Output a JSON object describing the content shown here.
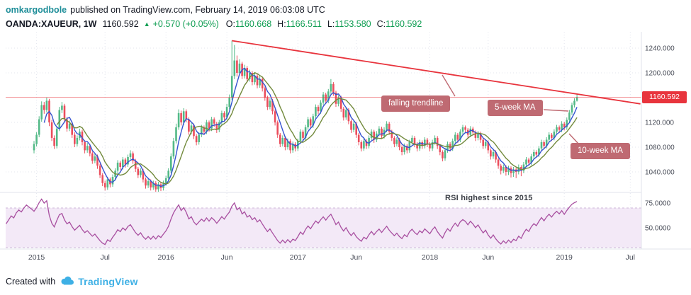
{
  "header": {
    "username": "omkargodbole",
    "published_text": "published on TradingView.com, February 14, 2019 06:03:08 UTC",
    "symbol": "OANDA:XAUEUR, 1W",
    "price": "1160.592",
    "up_arrow": "▲",
    "change": "+0.570 (+0.05%)",
    "ohlc": [
      {
        "label": "O:",
        "value": "1160.668"
      },
      {
        "label": "H:",
        "value": "1166.511"
      },
      {
        "label": "L:",
        "value": "1153.580"
      },
      {
        "label": "C:",
        "value": "1160.592"
      }
    ]
  },
  "annotations": {
    "falling_trendline": "falling trendline",
    "ma_fast": "5-week MA",
    "ma_slow": "10-week MA",
    "rsi_note": "RSI highest since 2015"
  },
  "price_axis_label": "1160.592",
  "footer": {
    "created_with": "Created with",
    "brand": "TradingView"
  },
  "colors": {
    "up": "#53b987",
    "down": "#eb4d5c",
    "ma_fast": "#3553d0",
    "ma_slow": "#728a3c",
    "trend": "#e8343d",
    "rsi": "#a84fa0",
    "rsi_band_fill": "#f3e9f7",
    "rsi_band_edge": "#ccb6d9",
    "label_box": "#bf6a72",
    "grid": "#e3e5ee",
    "axis_text": "#4a4e59",
    "header_green": "#0f9d52",
    "username_teal": "#1e8e99",
    "tv_blue": "#3eb0e5"
  },
  "chart_data": {
    "type": "candlestick",
    "title": "OANDA:XAUEUR, 1W",
    "legend": [
      "5-week MA",
      "10-week MA",
      "RSI"
    ],
    "main_ylim": [
      1007,
      1266
    ],
    "rsi_ylim": [
      28.5,
      85.5
    ],
    "grid": true,
    "price_line": 1160.592,
    "first_open": 1075,
    "y_axis_ticks_main": [
      {
        "label": "1240.000",
        "value": 1240
      },
      {
        "label": "1200.000",
        "value": 1200
      },
      {
        "label": "1120.000",
        "value": 1120
      },
      {
        "label": "1080.000",
        "value": 1080
      },
      {
        "label": "1040.000",
        "value": 1040
      }
    ],
    "y_axis_ticks_rsi": [
      {
        "label": "75.0000",
        "value": 75
      },
      {
        "label": "50.0000",
        "value": 50
      }
    ],
    "x_axis_labels": [
      {
        "label": "2015",
        "week": 1
      },
      {
        "label": "Jul",
        "week": 28
      },
      {
        "label": "2016",
        "week": 52
      },
      {
        "label": "Jun",
        "week": 76
      },
      {
        "label": "2017",
        "week": 104
      },
      {
        "label": "Jun",
        "week": 127
      },
      {
        "label": "2018",
        "week": 156
      },
      {
        "label": "Jun",
        "week": 179
      },
      {
        "label": "2019",
        "week": 209
      },
      {
        "label": "Jul",
        "week": 235
      }
    ],
    "indicators": {
      "ma_fast": 5,
      "ma_slow": 10,
      "rsi_period": 14,
      "rsi_bands": [
        70,
        30
      ]
    },
    "trendline": {
      "from_week": 78,
      "from_price": 1252,
      "to_week": 239,
      "to_price": 1150
    },
    "rsi_seed": {
      "avg_gain": 6,
      "avg_loss": 3
    },
    "rsi_prelude": [
      {
        "week": -11,
        "value": 54
      },
      {
        "week": -10,
        "value": 58
      },
      {
        "week": -9,
        "value": 62
      },
      {
        "week": -8,
        "value": 60
      },
      {
        "week": -7,
        "value": 65
      },
      {
        "week": -6,
        "value": 68
      },
      {
        "week": -5,
        "value": 66
      },
      {
        "week": -4,
        "value": 70
      },
      {
        "week": -3,
        "value": 73
      },
      {
        "week": -2,
        "value": 71
      },
      {
        "week": -1,
        "value": 69
      }
    ],
    "candles": [
      [
        1090,
        1070,
        1085
      ],
      [
        1104,
        1081,
        1100
      ],
      [
        1130,
        1096,
        1125
      ],
      [
        1154,
        1121,
        1148
      ],
      [
        1153,
        1134,
        1140
      ],
      [
        1160,
        1136,
        1155
      ],
      [
        1158,
        1114,
        1120
      ],
      [
        1124,
        1090,
        1095
      ],
      [
        1099,
        1077,
        1082
      ],
      [
        1114,
        1078,
        1110
      ],
      [
        1145,
        1106,
        1140
      ],
      [
        1153,
        1135,
        1147
      ],
      [
        1150,
        1120,
        1125
      ],
      [
        1129,
        1105,
        1110
      ],
      [
        1123,
        1106,
        1118
      ],
      [
        1121,
        1095,
        1100
      ],
      [
        1104,
        1080,
        1085
      ],
      [
        1099,
        1081,
        1095
      ],
      [
        1110,
        1091,
        1105
      ],
      [
        1108,
        1083,
        1088
      ],
      [
        1091,
        1070,
        1075
      ],
      [
        1087,
        1071,
        1082
      ],
      [
        1085,
        1065,
        1070
      ],
      [
        1073,
        1053,
        1058
      ],
      [
        1069,
        1054,
        1065
      ],
      [
        1068,
        1045,
        1050
      ],
      [
        1053,
        1030,
        1035
      ],
      [
        1038,
        1017,
        1022
      ],
      [
        1026,
        1010,
        1015
      ],
      [
        1032,
        1011,
        1028
      ],
      [
        1031,
        1015,
        1020
      ],
      [
        1036,
        1016,
        1032
      ],
      [
        1046,
        1026,
        1042
      ],
      [
        1059,
        1038,
        1055
      ],
      [
        1058,
        1043,
        1048
      ],
      [
        1064,
        1044,
        1060
      ],
      [
        1063,
        1047,
        1052
      ],
      [
        1068,
        1048,
        1064
      ],
      [
        1075,
        1060,
        1070
      ],
      [
        1073,
        1053,
        1058
      ],
      [
        1061,
        1040,
        1045
      ],
      [
        1048,
        1030,
        1035
      ],
      [
        1046,
        1031,
        1042
      ],
      [
        1045,
        1023,
        1028
      ],
      [
        1031,
        1013,
        1018
      ],
      [
        1029,
        1014,
        1025
      ],
      [
        1028,
        1010,
        1015
      ],
      [
        1026,
        1011,
        1022
      ],
      [
        1025,
        1008,
        1012
      ],
      [
        1024,
        1008,
        1020
      ],
      [
        1023,
        1009,
        1014
      ],
      [
        1026,
        1010,
        1022
      ],
      [
        1034,
        1018,
        1030
      ],
      [
        1046,
        1026,
        1042
      ],
      [
        1070,
        1038,
        1065
      ],
      [
        1095,
        1061,
        1090
      ],
      [
        1118,
        1086,
        1112
      ],
      [
        1141,
        1108,
        1135
      ],
      [
        1139,
        1115,
        1120
      ],
      [
        1143,
        1116,
        1138
      ],
      [
        1141,
        1120,
        1125
      ],
      [
        1128,
        1100,
        1105
      ],
      [
        1119,
        1101,
        1115
      ],
      [
        1118,
        1093,
        1098
      ],
      [
        1101,
        1083,
        1088
      ],
      [
        1104,
        1084,
        1100
      ],
      [
        1116,
        1096,
        1112
      ],
      [
        1115,
        1100,
        1105
      ],
      [
        1124,
        1101,
        1120
      ],
      [
        1123,
        1105,
        1110
      ],
      [
        1129,
        1106,
        1125
      ],
      [
        1128,
        1113,
        1118
      ],
      [
        1121,
        1103,
        1108
      ],
      [
        1124,
        1104,
        1120
      ],
      [
        1139,
        1116,
        1135
      ],
      [
        1138,
        1123,
        1128
      ],
      [
        1150,
        1124,
        1145
      ],
      [
        1165,
        1141,
        1160
      ],
      [
        1252,
        1156,
        1195
      ],
      [
        1245,
        1190,
        1220
      ],
      [
        1228,
        1194,
        1200
      ],
      [
        1222,
        1196,
        1215
      ],
      [
        1218,
        1190,
        1195
      ],
      [
        1213,
        1191,
        1208
      ],
      [
        1211,
        1185,
        1190
      ],
      [
        1205,
        1186,
        1200
      ],
      [
        1203,
        1180,
        1185
      ],
      [
        1200,
        1181,
        1195
      ],
      [
        1198,
        1175,
        1180
      ],
      [
        1195,
        1176,
        1190
      ],
      [
        1193,
        1170,
        1175
      ],
      [
        1178,
        1155,
        1160
      ],
      [
        1163,
        1140,
        1145
      ],
      [
        1159,
        1141,
        1155
      ],
      [
        1158,
        1133,
        1138
      ],
      [
        1141,
        1115,
        1120
      ],
      [
        1123,
        1095,
        1100
      ],
      [
        1103,
        1080,
        1085
      ],
      [
        1099,
        1081,
        1095
      ],
      [
        1098,
        1075,
        1080
      ],
      [
        1094,
        1076,
        1090
      ],
      [
        1093,
        1070,
        1075
      ],
      [
        1089,
        1071,
        1085
      ],
      [
        1088,
        1073,
        1078
      ],
      [
        1094,
        1074,
        1090
      ],
      [
        1109,
        1086,
        1105
      ],
      [
        1108,
        1090,
        1095
      ],
      [
        1116,
        1091,
        1112
      ],
      [
        1129,
        1108,
        1125
      ],
      [
        1128,
        1110,
        1115
      ],
      [
        1134,
        1111,
        1130
      ],
      [
        1149,
        1126,
        1145
      ],
      [
        1148,
        1133,
        1138
      ],
      [
        1156,
        1134,
        1152
      ],
      [
        1169,
        1148,
        1165
      ],
      [
        1168,
        1150,
        1155
      ],
      [
        1174,
        1151,
        1170
      ],
      [
        1190,
        1166,
        1182
      ],
      [
        1185,
        1163,
        1168
      ],
      [
        1171,
        1145,
        1150
      ],
      [
        1164,
        1146,
        1160
      ],
      [
        1163,
        1137,
        1142
      ],
      [
        1145,
        1123,
        1128
      ],
      [
        1144,
        1124,
        1140
      ],
      [
        1143,
        1117,
        1122
      ],
      [
        1125,
        1103,
        1108
      ],
      [
        1122,
        1104,
        1118
      ],
      [
        1121,
        1095,
        1100
      ],
      [
        1103,
        1083,
        1088
      ],
      [
        1091,
        1073,
        1078
      ],
      [
        1094,
        1074,
        1090
      ],
      [
        1093,
        1077,
        1082
      ],
      [
        1099,
        1078,
        1095
      ],
      [
        1109,
        1091,
        1105
      ],
      [
        1108,
        1087,
        1092
      ],
      [
        1106,
        1088,
        1102
      ],
      [
        1114,
        1098,
        1110
      ],
      [
        1113,
        1093,
        1098
      ],
      [
        1112,
        1094,
        1108
      ],
      [
        1122,
        1104,
        1118
      ],
      [
        1121,
        1100,
        1105
      ],
      [
        1108,
        1090,
        1095
      ],
      [
        1098,
        1080,
        1085
      ],
      [
        1096,
        1081,
        1092
      ],
      [
        1095,
        1075,
        1080
      ],
      [
        1083,
        1067,
        1072
      ],
      [
        1086,
        1068,
        1082
      ],
      [
        1085,
        1070,
        1075
      ],
      [
        1092,
        1071,
        1088
      ],
      [
        1099,
        1084,
        1095
      ],
      [
        1098,
        1080,
        1085
      ],
      [
        1088,
        1073,
        1078
      ],
      [
        1092,
        1074,
        1088
      ],
      [
        1091,
        1077,
        1082
      ],
      [
        1096,
        1078,
        1092
      ],
      [
        1095,
        1080,
        1085
      ],
      [
        1088,
        1073,
        1078
      ],
      [
        1092,
        1074,
        1088
      ],
      [
        1099,
        1084,
        1095
      ],
      [
        1098,
        1077,
        1082
      ],
      [
        1085,
        1067,
        1072
      ],
      [
        1075,
        1057,
        1062
      ],
      [
        1079,
        1058,
        1075
      ],
      [
        1089,
        1071,
        1085
      ],
      [
        1088,
        1073,
        1078
      ],
      [
        1094,
        1074,
        1090
      ],
      [
        1104,
        1086,
        1100
      ],
      [
        1103,
        1087,
        1092
      ],
      [
        1109,
        1088,
        1105
      ],
      [
        1116,
        1101,
        1112
      ],
      [
        1115,
        1103,
        1108
      ],
      [
        1111,
        1095,
        1100
      ],
      [
        1114,
        1096,
        1110
      ],
      [
        1113,
        1099,
        1104
      ],
      [
        1107,
        1090,
        1095
      ],
      [
        1106,
        1091,
        1102
      ],
      [
        1105,
        1087,
        1092
      ],
      [
        1095,
        1077,
        1082
      ],
      [
        1092,
        1078,
        1088
      ],
      [
        1091,
        1070,
        1075
      ],
      [
        1078,
        1060,
        1065
      ],
      [
        1076,
        1061,
        1072
      ],
      [
        1075,
        1055,
        1060
      ],
      [
        1063,
        1045,
        1050
      ],
      [
        1053,
        1036,
        1042
      ],
      [
        1052,
        1038,
        1048
      ],
      [
        1051,
        1034,
        1040
      ],
      [
        1050,
        1035,
        1046
      ],
      [
        1049,
        1031,
        1038
      ],
      [
        1048,
        1032,
        1044
      ],
      [
        1047,
        1030,
        1040
      ],
      [
        1052,
        1036,
        1048
      ],
      [
        1051,
        1033,
        1042
      ],
      [
        1056,
        1038,
        1052
      ],
      [
        1064,
        1048,
        1060
      ],
      [
        1063,
        1050,
        1055
      ],
      [
        1069,
        1051,
        1065
      ],
      [
        1076,
        1061,
        1072
      ],
      [
        1075,
        1063,
        1068
      ],
      [
        1082,
        1064,
        1078
      ],
      [
        1092,
        1074,
        1088
      ],
      [
        1091,
        1077,
        1082
      ],
      [
        1096,
        1078,
        1092
      ],
      [
        1104,
        1088,
        1100
      ],
      [
        1103,
        1090,
        1095
      ],
      [
        1109,
        1091,
        1105
      ],
      [
        1116,
        1101,
        1112
      ],
      [
        1115,
        1103,
        1108
      ],
      [
        1122,
        1104,
        1118
      ],
      [
        1121,
        1107,
        1112
      ],
      [
        1128,
        1108,
        1124
      ],
      [
        1140,
        1120,
        1136
      ],
      [
        1152,
        1132,
        1148
      ],
      [
        1159,
        1144,
        1155
      ],
      [
        1166.511,
        1153.58,
        1160.592
      ]
    ]
  }
}
